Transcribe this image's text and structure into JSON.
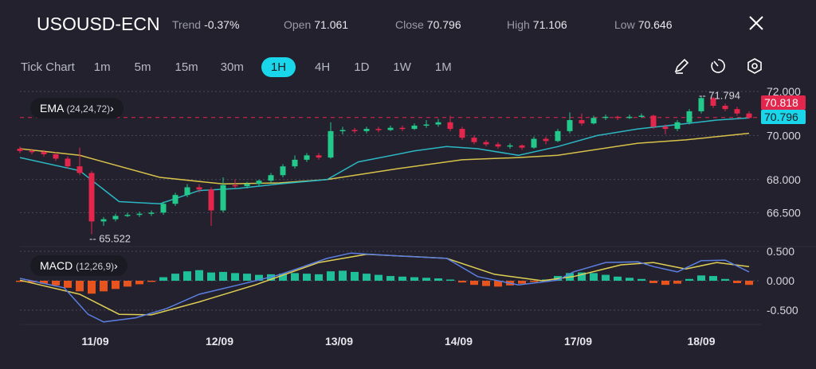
{
  "header": {
    "symbol": "USOUSD-ECN",
    "trend_label": "Trend",
    "trend_value": "-0.37%",
    "open_label": "Open",
    "open_value": "71.061",
    "close_label": "Close",
    "close_value": "70.796",
    "high_label": "High",
    "high_value": "71.106",
    "low_label": "Low",
    "low_value": "70.646",
    "close_icon": "close-x-icon"
  },
  "timeframes": [
    "Tick Chart",
    "1m",
    "5m",
    "15m",
    "30m",
    "1H",
    "4H",
    "1D",
    "1W",
    "1M"
  ],
  "active_timeframe": "1H",
  "tools": [
    "pencil-icon",
    "timer-icon",
    "settings-hexagon-icon"
  ],
  "indicators": {
    "ema_label": "EMA",
    "ema_params": "(24,24,72)",
    "macd_label": "MACD",
    "macd_params": "(12,26,9)"
  },
  "colors": {
    "background": "#22212d",
    "accent": "#19d6ea",
    "up": "#22c98a",
    "down": "#e5264c",
    "ema_fast": "#2bb8c4",
    "ema_slow": "#d8c24a",
    "macd_line": "#5b7fe0",
    "signal_line": "#e0cf55",
    "hist_pos": "#1fbf9a",
    "hist_neg": "#e8541e"
  },
  "chart_data": [
    {
      "type": "candlestick",
      "ylim": [
        65,
        72.2
      ],
      "y_ticks": [
        "72.000",
        "70.000",
        "68.000",
        "66.500"
      ],
      "y_tick_values": [
        72,
        70,
        68,
        66.5
      ],
      "x_tick_labels": [
        "11/09",
        "12/09",
        "13/09",
        "14/09",
        "17/09",
        "18/09"
      ],
      "x_tick_index": [
        6.3,
        16.7,
        26.7,
        36.7,
        46.7,
        57
      ],
      "grid": "dotted horizontal",
      "high_marker": {
        "label": "71.794",
        "value": 71.794,
        "index": 57
      },
      "low_marker": {
        "label": "65.522",
        "value": 65.522,
        "index": 6
      },
      "last_price": {
        "label": "70.818",
        "value": 70.818
      },
      "current_price": {
        "label": "70.796",
        "value": 70.796
      },
      "candles_ohlc": [
        [
          69.4,
          69.5,
          69.2,
          69.3
        ],
        [
          69.3,
          69.4,
          69.15,
          69.25
        ],
        [
          69.25,
          69.35,
          69.05,
          69.15
        ],
        [
          69.15,
          69.25,
          68.85,
          68.95
        ],
        [
          68.95,
          69.05,
          68.5,
          68.6
        ],
        [
          68.6,
          69.45,
          68.2,
          68.3
        ],
        [
          68.3,
          68.4,
          65.52,
          66.1
        ],
        [
          66.1,
          66.3,
          65.9,
          66.2
        ],
        [
          66.2,
          66.45,
          66.1,
          66.35
        ],
        [
          66.35,
          66.5,
          66.3,
          66.4
        ],
        [
          66.4,
          66.55,
          66.3,
          66.45
        ],
        [
          66.45,
          66.6,
          66.35,
          66.5
        ],
        [
          66.5,
          67.0,
          66.4,
          66.9
        ],
        [
          66.9,
          67.4,
          66.8,
          67.3
        ],
        [
          67.3,
          67.8,
          67.2,
          67.65
        ],
        [
          67.65,
          67.8,
          67.4,
          67.55
        ],
        [
          67.55,
          67.65,
          65.9,
          66.6
        ],
        [
          66.6,
          68.1,
          66.5,
          67.75
        ],
        [
          67.75,
          68.0,
          67.6,
          67.7
        ],
        [
          67.7,
          67.9,
          67.6,
          67.8
        ],
        [
          67.8,
          68.0,
          67.7,
          67.95
        ],
        [
          67.95,
          68.3,
          67.85,
          68.2
        ],
        [
          68.2,
          68.7,
          68.1,
          68.6
        ],
        [
          68.6,
          69.1,
          68.5,
          68.9
        ],
        [
          68.9,
          69.2,
          68.8,
          69.1
        ],
        [
          69.1,
          69.2,
          68.9,
          69.0
        ],
        [
          69.0,
          70.6,
          68.95,
          70.2
        ],
        [
          70.2,
          70.4,
          70.05,
          70.25
        ],
        [
          70.25,
          70.35,
          70.1,
          70.2
        ],
        [
          70.2,
          70.4,
          70.1,
          70.3
        ],
        [
          70.3,
          70.4,
          70.15,
          70.25
        ],
        [
          70.25,
          70.45,
          70.2,
          70.35
        ],
        [
          70.35,
          70.45,
          70.2,
          70.3
        ],
        [
          70.3,
          70.55,
          70.25,
          70.45
        ],
        [
          70.45,
          70.7,
          70.35,
          70.5
        ],
        [
          70.5,
          70.75,
          70.4,
          70.6
        ],
        [
          70.6,
          70.9,
          70.2,
          70.3
        ],
        [
          70.3,
          70.4,
          69.8,
          69.9
        ],
        [
          69.9,
          70.0,
          69.6,
          69.7
        ],
        [
          69.7,
          69.8,
          69.5,
          69.6
        ],
        [
          69.6,
          69.7,
          69.4,
          69.5
        ],
        [
          69.5,
          69.65,
          69.4,
          69.55
        ],
        [
          69.55,
          69.6,
          69.35,
          69.45
        ],
        [
          69.45,
          69.95,
          69.4,
          69.85
        ],
        [
          69.85,
          69.95,
          69.6,
          69.75
        ],
        [
          69.75,
          70.3,
          69.7,
          70.2
        ],
        [
          70.2,
          71.05,
          70.1,
          70.7
        ],
        [
          70.7,
          71.0,
          70.45,
          70.55
        ],
        [
          70.55,
          70.9,
          70.5,
          70.8
        ],
        [
          70.8,
          70.95,
          70.7,
          70.85
        ],
        [
          70.85,
          70.9,
          70.7,
          70.8
        ],
        [
          70.8,
          70.95,
          70.75,
          70.85
        ],
        [
          70.85,
          71.0,
          70.8,
          70.9
        ],
        [
          70.9,
          70.95,
          70.3,
          70.4
        ],
        [
          70.4,
          70.5,
          70.05,
          70.3
        ],
        [
          70.3,
          70.7,
          70.2,
          70.6
        ],
        [
          70.6,
          71.2,
          70.5,
          71.1
        ],
        [
          71.1,
          71.794,
          71.0,
          71.7
        ],
        [
          71.7,
          71.75,
          71.25,
          71.35
        ],
        [
          71.35,
          71.45,
          71.1,
          71.2
        ],
        [
          71.2,
          71.3,
          70.9,
          71.0
        ],
        [
          71.0,
          71.1,
          70.75,
          70.8
        ]
      ],
      "ema_fast": [
        [
          0,
          69.0
        ],
        [
          5,
          68.4
        ],
        [
          8.3,
          67.0
        ],
        [
          11.7,
          66.9
        ],
        [
          15,
          67.5
        ],
        [
          18.3,
          67.6
        ],
        [
          21.7,
          67.8
        ],
        [
          25.7,
          68.0
        ],
        [
          28.3,
          68.8
        ],
        [
          33,
          69.3
        ],
        [
          35.7,
          69.5
        ],
        [
          38.3,
          69.4
        ],
        [
          41.7,
          69.1
        ],
        [
          45,
          69.5
        ],
        [
          48.3,
          70.0
        ],
        [
          51.7,
          70.3
        ],
        [
          55,
          70.5
        ],
        [
          58.3,
          70.7
        ],
        [
          61,
          70.8
        ]
      ],
      "ema_slow": [
        [
          0,
          69.4
        ],
        [
          5,
          69.1
        ],
        [
          11.7,
          68.1
        ],
        [
          17,
          67.8
        ],
        [
          21.7,
          67.85
        ],
        [
          25.7,
          68.0
        ],
        [
          31.7,
          68.5
        ],
        [
          37,
          68.9
        ],
        [
          41.7,
          69.0
        ],
        [
          45,
          69.1
        ],
        [
          51.7,
          69.65
        ],
        [
          55.7,
          69.8
        ],
        [
          61,
          70.1
        ]
      ]
    },
    {
      "type": "macd",
      "ylim": [
        -0.75,
        0.55
      ],
      "y_ticks": [
        "0.500",
        "0.000",
        "-0.500"
      ],
      "y_tick_values": [
        0.5,
        0,
        -0.5
      ],
      "macd": [
        [
          0,
          0.04
        ],
        [
          3.7,
          -0.12
        ],
        [
          5.7,
          -0.57
        ],
        [
          7,
          -0.7
        ],
        [
          9.7,
          -0.63
        ],
        [
          12.3,
          -0.47
        ],
        [
          15,
          -0.23
        ],
        [
          18.3,
          -0.07
        ],
        [
          21.7,
          0.1
        ],
        [
          25.7,
          0.38
        ],
        [
          27.7,
          0.47
        ],
        [
          31.7,
          0.42
        ],
        [
          35.7,
          0.38
        ],
        [
          38.3,
          0.07
        ],
        [
          41.7,
          -0.07
        ],
        [
          45,
          0.01
        ],
        [
          46.3,
          0.15
        ],
        [
          49,
          0.31
        ],
        [
          51.7,
          0.32
        ],
        [
          53,
          0.24
        ],
        [
          55,
          0.15
        ],
        [
          57,
          0.34
        ],
        [
          59,
          0.35
        ],
        [
          61,
          0.15
        ]
      ],
      "signal": [
        [
          0,
          0.01
        ],
        [
          5,
          -0.23
        ],
        [
          8.3,
          -0.57
        ],
        [
          11,
          -0.58
        ],
        [
          15,
          -0.36
        ],
        [
          19.7,
          -0.07
        ],
        [
          25,
          0.31
        ],
        [
          29,
          0.45
        ],
        [
          35.7,
          0.38
        ],
        [
          39.7,
          0.11
        ],
        [
          43.7,
          0
        ],
        [
          46.3,
          0.07
        ],
        [
          50.3,
          0.27
        ],
        [
          53,
          0.31
        ],
        [
          55.7,
          0.2
        ],
        [
          58.3,
          0.31
        ],
        [
          61,
          0.24
        ]
      ],
      "histogram": [
        -0.02,
        -0.03,
        -0.05,
        -0.08,
        -0.12,
        -0.18,
        -0.22,
        -0.18,
        -0.14,
        -0.1,
        -0.06,
        -0.02,
        0.06,
        0.12,
        0.16,
        0.18,
        0.14,
        0.15,
        0.13,
        0.12,
        0.1,
        0.11,
        0.12,
        0.13,
        0.12,
        0.11,
        0.16,
        0.17,
        0.15,
        0.12,
        0.1,
        0.08,
        0.07,
        0.06,
        0.05,
        0.04,
        0.02,
        -0.03,
        -0.07,
        -0.09,
        -0.1,
        -0.08,
        -0.05,
        -0.02,
        0.02,
        0.08,
        0.13,
        0.14,
        0.13,
        0.1,
        0.07,
        0.05,
        0.03,
        -0.04,
        -0.07,
        -0.05,
        0.03,
        0.09,
        0.08,
        0.03,
        -0.04,
        -0.07
      ]
    }
  ]
}
